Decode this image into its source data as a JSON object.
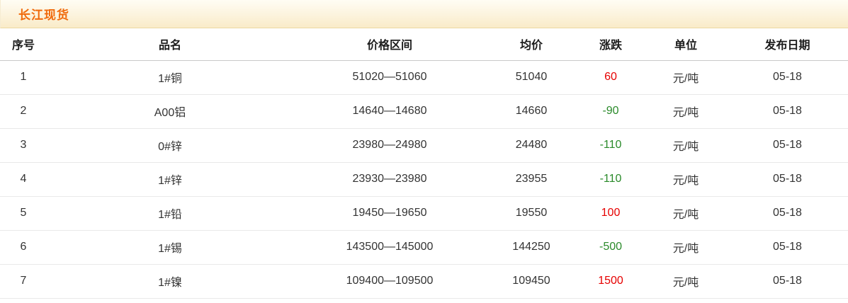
{
  "title": "长江现货",
  "colors": {
    "accent_orange": "#f06a0c",
    "titlebar_bg_top": "#fffdf4",
    "titlebar_bg_bottom": "#f9ebc8",
    "titlebar_border": "#ecd8a2",
    "header_border": "#c9c9c9",
    "row_border": "#e9e9e9",
    "text": "#333333",
    "up_red": "#e60000",
    "down_green": "#2a8a2a"
  },
  "chart_data": {
    "type": "table",
    "title": "长江现货",
    "columns": [
      "序号",
      "品名",
      "价格区间",
      "均价",
      "涨跌",
      "单位",
      "发布日期"
    ],
    "change_column_index": 4,
    "rows": [
      [
        "1",
        "1#铜",
        "51020—51060",
        "51040",
        "60",
        "元/吨",
        "05-18"
      ],
      [
        "2",
        "A00铝",
        "14640—14680",
        "14660",
        "-90",
        "元/吨",
        "05-18"
      ],
      [
        "3",
        "0#锌",
        "23980—24980",
        "24480",
        "-110",
        "元/吨",
        "05-18"
      ],
      [
        "4",
        "1#锌",
        "23930—23980",
        "23955",
        "-110",
        "元/吨",
        "05-18"
      ],
      [
        "5",
        "1#铅",
        "19450—19650",
        "19550",
        "100",
        "元/吨",
        "05-18"
      ],
      [
        "6",
        "1#锡",
        "143500—145000",
        "144250",
        "-500",
        "元/吨",
        "05-18"
      ],
      [
        "7",
        "1#镍",
        "109400—109500",
        "109450",
        "1500",
        "元/吨",
        "05-18"
      ]
    ]
  }
}
